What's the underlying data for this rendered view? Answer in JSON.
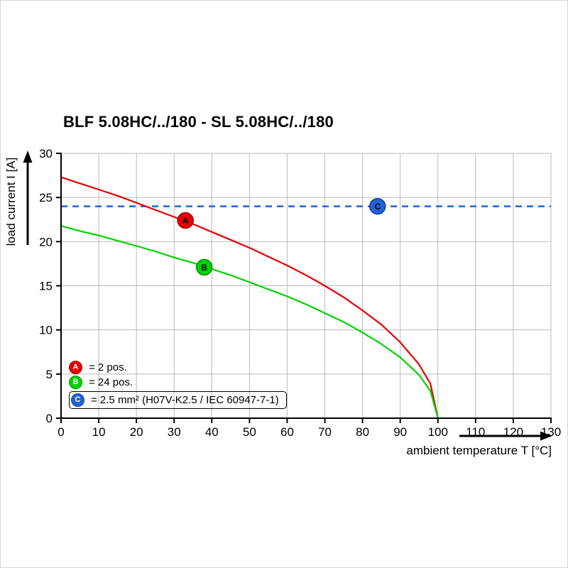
{
  "title": "BLF 5.08HC/../180 - SL 5.08HC/../180",
  "chart_data": {
    "type": "line",
    "title": "BLF 5.08HC/../180 - SL 5.08HC/../180",
    "xlabel": "ambient temperature T [°C]",
    "ylabel": "load current I [A]",
    "xlim": [
      0,
      130
    ],
    "ylim": [
      0,
      30
    ],
    "x_ticks": [
      0,
      10,
      20,
      30,
      40,
      50,
      60,
      70,
      80,
      90,
      100,
      110,
      120,
      130
    ],
    "y_ticks": [
      0,
      5,
      10,
      15,
      20,
      25,
      30
    ],
    "grid": true,
    "legend_position": "bottom-left-inside",
    "series": [
      {
        "name": "A",
        "label": "= 2 pos.",
        "color": "#e60000",
        "edge": "#9e0000",
        "x": [
          0,
          5,
          10,
          15,
          20,
          25,
          30,
          35,
          40,
          45,
          50,
          55,
          60,
          65,
          70,
          75,
          80,
          85,
          90,
          95,
          98,
          100
        ],
        "y": [
          27.3,
          26.6,
          25.9,
          25.2,
          24.4,
          23.6,
          22.8,
          22.0,
          21.1,
          20.2,
          19.3,
          18.3,
          17.3,
          16.2,
          15.0,
          13.7,
          12.2,
          10.6,
          8.6,
          6.1,
          3.9,
          0
        ],
        "marker": {
          "x": 33,
          "y": 22.4
        }
      },
      {
        "name": "B",
        "label": "= 24 pos.",
        "color": "#00d300",
        "edge": "#009300",
        "x": [
          0,
          5,
          10,
          15,
          20,
          25,
          30,
          35,
          40,
          45,
          50,
          55,
          60,
          65,
          70,
          75,
          80,
          85,
          90,
          95,
          98,
          100
        ],
        "y": [
          21.8,
          21.2,
          20.7,
          20.1,
          19.5,
          18.9,
          18.2,
          17.6,
          16.9,
          16.2,
          15.4,
          14.6,
          13.8,
          12.9,
          11.9,
          10.9,
          9.7,
          8.4,
          6.9,
          4.9,
          3.1,
          0
        ],
        "marker": {
          "x": 38,
          "y": 17.1
        }
      },
      {
        "name": "C",
        "label": "= 2.5 mm² (H07V-K2.5 / IEC 60947-7-1)",
        "color": "#2361d6",
        "edge": "#123f9e",
        "style": "dashed",
        "value": 24,
        "marker": {
          "x": 84,
          "y": 24
        }
      }
    ]
  }
}
